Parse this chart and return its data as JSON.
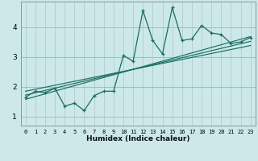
{
  "title": "",
  "xlabel": "Humidex (Indice chaleur)",
  "bg_color": "#cce8e8",
  "grid_color_minor": "#b8d8d8",
  "grid_color_major": "#c4dcdc",
  "line_color": "#1a6e60",
  "xlim": [
    -0.5,
    23.5
  ],
  "ylim": [
    0.7,
    4.85
  ],
  "xticks": [
    0,
    1,
    2,
    3,
    4,
    5,
    6,
    7,
    8,
    9,
    10,
    11,
    12,
    13,
    14,
    15,
    16,
    17,
    18,
    19,
    20,
    21,
    22,
    23
  ],
  "yticks": [
    1,
    2,
    3,
    4
  ],
  "scatter_x": [
    0,
    1,
    2,
    3,
    4,
    5,
    6,
    7,
    8,
    9,
    10,
    11,
    12,
    13,
    14,
    15,
    16,
    17,
    18,
    19,
    20,
    21,
    22,
    23
  ],
  "scatter_y": [
    1.65,
    1.85,
    1.8,
    1.95,
    1.35,
    1.45,
    1.2,
    1.7,
    1.85,
    1.85,
    3.05,
    2.85,
    4.55,
    3.55,
    3.1,
    4.65,
    3.55,
    3.6,
    4.05,
    3.8,
    3.75,
    3.45,
    3.5,
    3.65
  ],
  "regression_lines": [
    {
      "x0": 0,
      "y0": 1.58,
      "x1": 23,
      "y1": 3.68
    },
    {
      "x0": 0,
      "y0": 1.72,
      "x1": 23,
      "y1": 3.52
    },
    {
      "x0": 0,
      "y0": 1.85,
      "x1": 23,
      "y1": 3.38
    }
  ]
}
